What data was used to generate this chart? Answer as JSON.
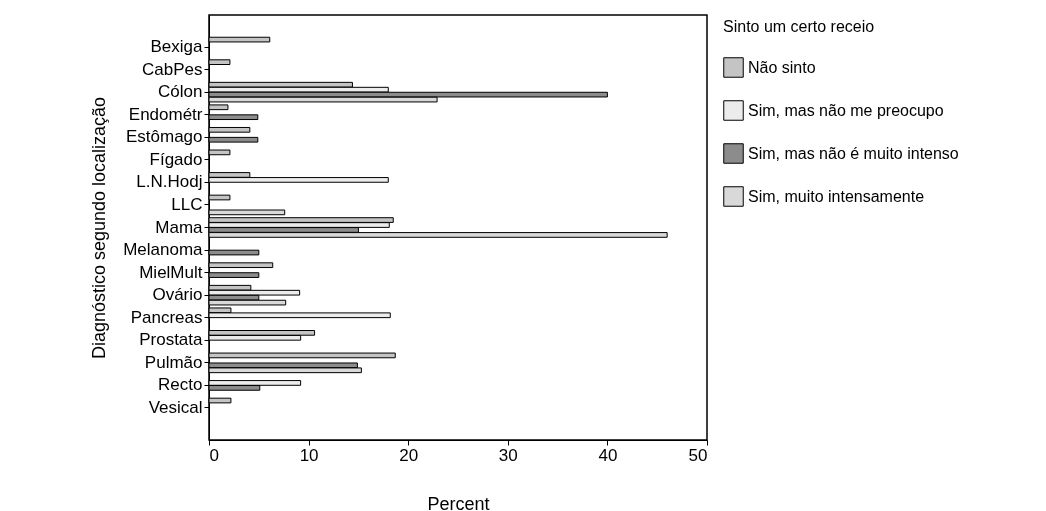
{
  "chart_data": {
    "type": "bar",
    "orientation": "horizontal",
    "xlabel": "Percent",
    "ylabel": "Diagnóstico segundo localização",
    "legend_title": "Sinto um certo receio",
    "legend": "right",
    "grid": false,
    "categories": [
      "Bexiga",
      "CabPes",
      "Cólon",
      "Endométr",
      "Estômago",
      "Fígado",
      "L.N.Hodj",
      "LLC",
      "Mama",
      "Melanoma",
      "MielMult",
      "Ovário",
      "Pancreas",
      "Prostata",
      "Pulmão",
      "Recto",
      "Vesical"
    ],
    "xlim": [
      0,
      50
    ],
    "xticks": [
      0,
      10,
      20,
      30,
      40,
      50
    ],
    "series": [
      {
        "name": "Não sinto",
        "color": "#c4c4c4",
        "values": [
          6.1,
          2.1,
          14.4,
          1.9,
          4.1,
          2.1,
          4.1,
          2.1,
          18.5,
          null,
          6.4,
          4.2,
          2.2,
          10.6,
          18.7,
          null,
          2.2
        ]
      },
      {
        "name": "Sim, mas não me preocupo",
        "color": "#ececec",
        "values": [
          null,
          null,
          18.0,
          null,
          null,
          null,
          18.0,
          null,
          18.1,
          null,
          null,
          9.1,
          18.2,
          9.2,
          null,
          9.2,
          null
        ]
      },
      {
        "name": "Sim, mas não é muito intenso",
        "color": "#8c8c8c",
        "values": [
          null,
          null,
          40.0,
          4.9,
          4.9,
          null,
          null,
          null,
          15.0,
          5.0,
          5.0,
          5.0,
          null,
          null,
          14.9,
          5.1,
          null
        ]
      },
      {
        "name": "Sim, muito intensamente",
        "color": "#d9d9d9",
        "values": [
          null,
          null,
          22.9,
          null,
          null,
          null,
          null,
          7.6,
          46.0,
          null,
          null,
          7.7,
          null,
          null,
          15.3,
          null,
          null
        ]
      }
    ]
  }
}
